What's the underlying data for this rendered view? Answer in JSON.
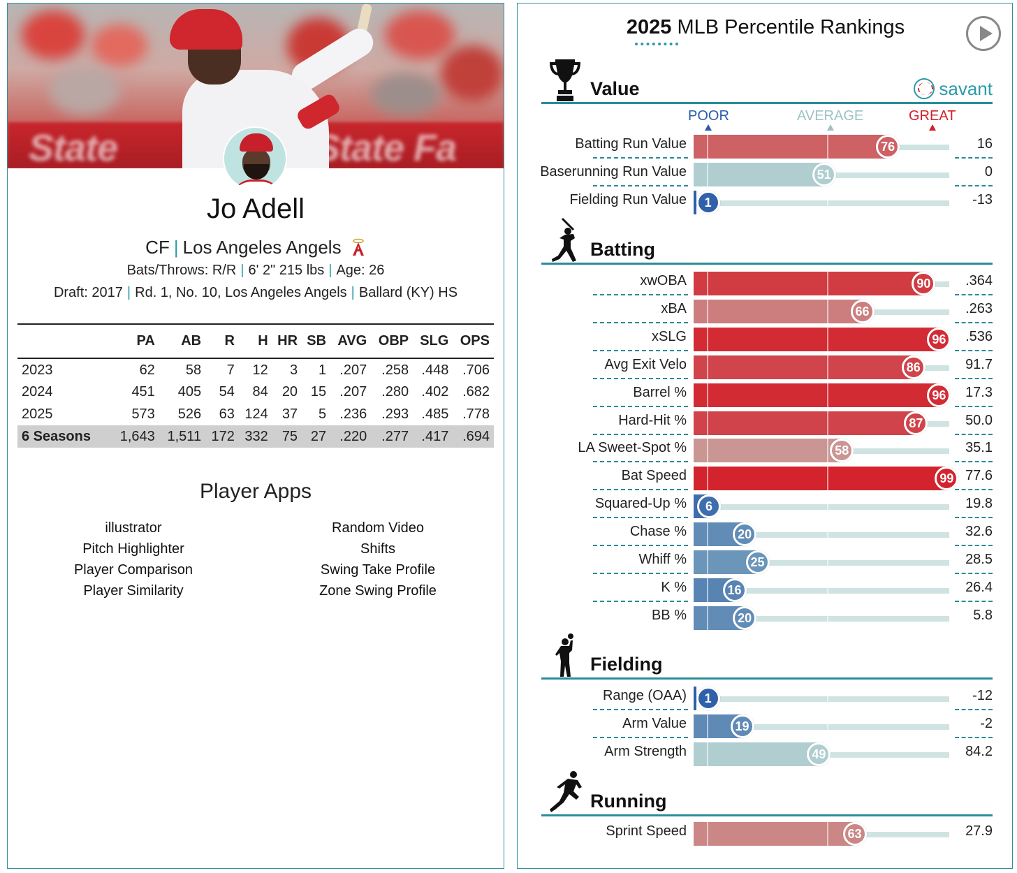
{
  "player": {
    "name": "Jo Adell",
    "position": "CF",
    "team": "Los Angeles Angels",
    "bats_throws": "Bats/Throws: R/R",
    "height_weight": "6' 2\" 215 lbs",
    "age": "Age: 26",
    "draft_label": "Draft:",
    "draft_year": "2017",
    "draft_pick": "Rd. 1, No. 10, Los Angeles Angels",
    "school": "Ballard (KY) HS",
    "banner_text_left": "State",
    "banner_text_right": "State Fa"
  },
  "stats_table": {
    "headers": [
      "",
      "PA",
      "AB",
      "R",
      "H",
      "HR",
      "SB",
      "AVG",
      "OBP",
      "SLG",
      "OPS"
    ],
    "rows": [
      [
        "2023",
        "62",
        "58",
        "7",
        "12",
        "3",
        "1",
        ".207",
        ".258",
        ".448",
        ".706"
      ],
      [
        "2024",
        "451",
        "405",
        "54",
        "84",
        "20",
        "15",
        ".207",
        ".280",
        ".402",
        ".682"
      ],
      [
        "2025",
        "573",
        "526",
        "63",
        "124",
        "37",
        "5",
        ".236",
        ".293",
        ".485",
        ".778"
      ]
    ],
    "total": [
      "6 Seasons",
      "1,643",
      "1,511",
      "172",
      "332",
      "75",
      "27",
      ".220",
      ".277",
      ".417",
      ".694"
    ]
  },
  "player_apps": {
    "title": "Player Apps",
    "left": [
      "illustrator",
      "Pitch Highlighter",
      "Player Comparison",
      "Player Similarity"
    ],
    "right": [
      "Random Video",
      "Shifts",
      "Swing Take Profile",
      "Zone Swing Profile"
    ]
  },
  "rankings": {
    "title_year": "2025",
    "title_rest": "MLB Percentile Rankings",
    "brand": "savant",
    "legend": {
      "poor": "POOR",
      "average": "AVERAGE",
      "great": "GREAT"
    },
    "colors": {
      "poor": "#2a5ba8",
      "average": "#9cc2c6",
      "great": "#d3202b",
      "teal": "#2a8c99"
    },
    "sections": [
      {
        "name": "Value",
        "icon": "trophy-icon",
        "metrics": [
          {
            "label": "Batting Run Value",
            "percentile": 76,
            "value": "16"
          },
          {
            "label": "Baserunning Run Value",
            "percentile": 51,
            "value": "0"
          },
          {
            "label": "Fielding Run Value",
            "percentile": 1,
            "value": "-13"
          }
        ]
      },
      {
        "name": "Batting",
        "icon": "batter-icon",
        "metrics": [
          {
            "label": "xwOBA",
            "percentile": 90,
            "value": ".364"
          },
          {
            "label": "xBA",
            "percentile": 66,
            "value": ".263"
          },
          {
            "label": "xSLG",
            "percentile": 96,
            "value": ".536"
          },
          {
            "label": "Avg Exit Velo",
            "percentile": 86,
            "value": "91.7"
          },
          {
            "label": "Barrel %",
            "percentile": 96,
            "value": "17.3"
          },
          {
            "label": "Hard-Hit %",
            "percentile": 87,
            "value": "50.0"
          },
          {
            "label": "LA Sweet-Spot %",
            "percentile": 58,
            "value": "35.1"
          },
          {
            "label": "Bat Speed",
            "percentile": 99,
            "value": "77.6"
          },
          {
            "label": "Squared-Up %",
            "percentile": 6,
            "value": "19.8"
          },
          {
            "label": "Chase %",
            "percentile": 20,
            "value": "32.6"
          },
          {
            "label": "Whiff %",
            "percentile": 25,
            "value": "28.5"
          },
          {
            "label": "K %",
            "percentile": 16,
            "value": "26.4"
          },
          {
            "label": "BB %",
            "percentile": 20,
            "value": "5.8"
          }
        ]
      },
      {
        "name": "Fielding",
        "icon": "fielder-icon",
        "metrics": [
          {
            "label": "Range (OAA)",
            "percentile": 1,
            "value": "-12"
          },
          {
            "label": "Arm Value",
            "percentile": 19,
            "value": "-2"
          },
          {
            "label": "Arm Strength",
            "percentile": 49,
            "value": "84.2"
          }
        ]
      },
      {
        "name": "Running",
        "icon": "runner-icon",
        "metrics": [
          {
            "label": "Sprint Speed",
            "percentile": 63,
            "value": "27.9"
          }
        ]
      }
    ]
  }
}
